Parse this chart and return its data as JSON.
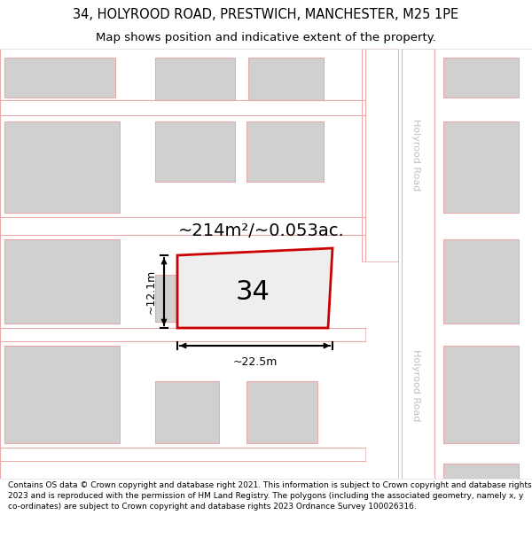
{
  "title": "34, HOLYROOD ROAD, PRESTWICH, MANCHESTER, M25 1PE",
  "subtitle": "Map shows position and indicative extent of the property.",
  "footer": "Contains OS data © Crown copyright and database right 2021. This information is subject to Crown copyright and database rights 2023 and is reproduced with the permission of HM Land Registry. The polygons (including the associated geometry, namely x, y co-ordinates) are subject to Crown copyright and database rights 2023 Ordnance Survey 100026316.",
  "bg": "#f2f2f2",
  "road_fill": "#ffffff",
  "road_line": "#e8aaaa",
  "bld_fill": "#d0d0d0",
  "bld_line": "#e8aaaa",
  "subj_fill": "#eeeeee",
  "subj_line": "#cc0000",
  "subj_label": "34",
  "area_label": "~214m²/~0.053ac.",
  "width_label": "~22.5m",
  "height_label": "~12.1m",
  "road_label": "Holyrood Road",
  "road_label_color": "#c0c0c0",
  "title_fontsize": 10.5,
  "subtitle_fontsize": 9.5,
  "footer_fontsize": 6.5,
  "area_fontsize": 14,
  "meas_fontsize": 9,
  "label_fontsize": 22
}
